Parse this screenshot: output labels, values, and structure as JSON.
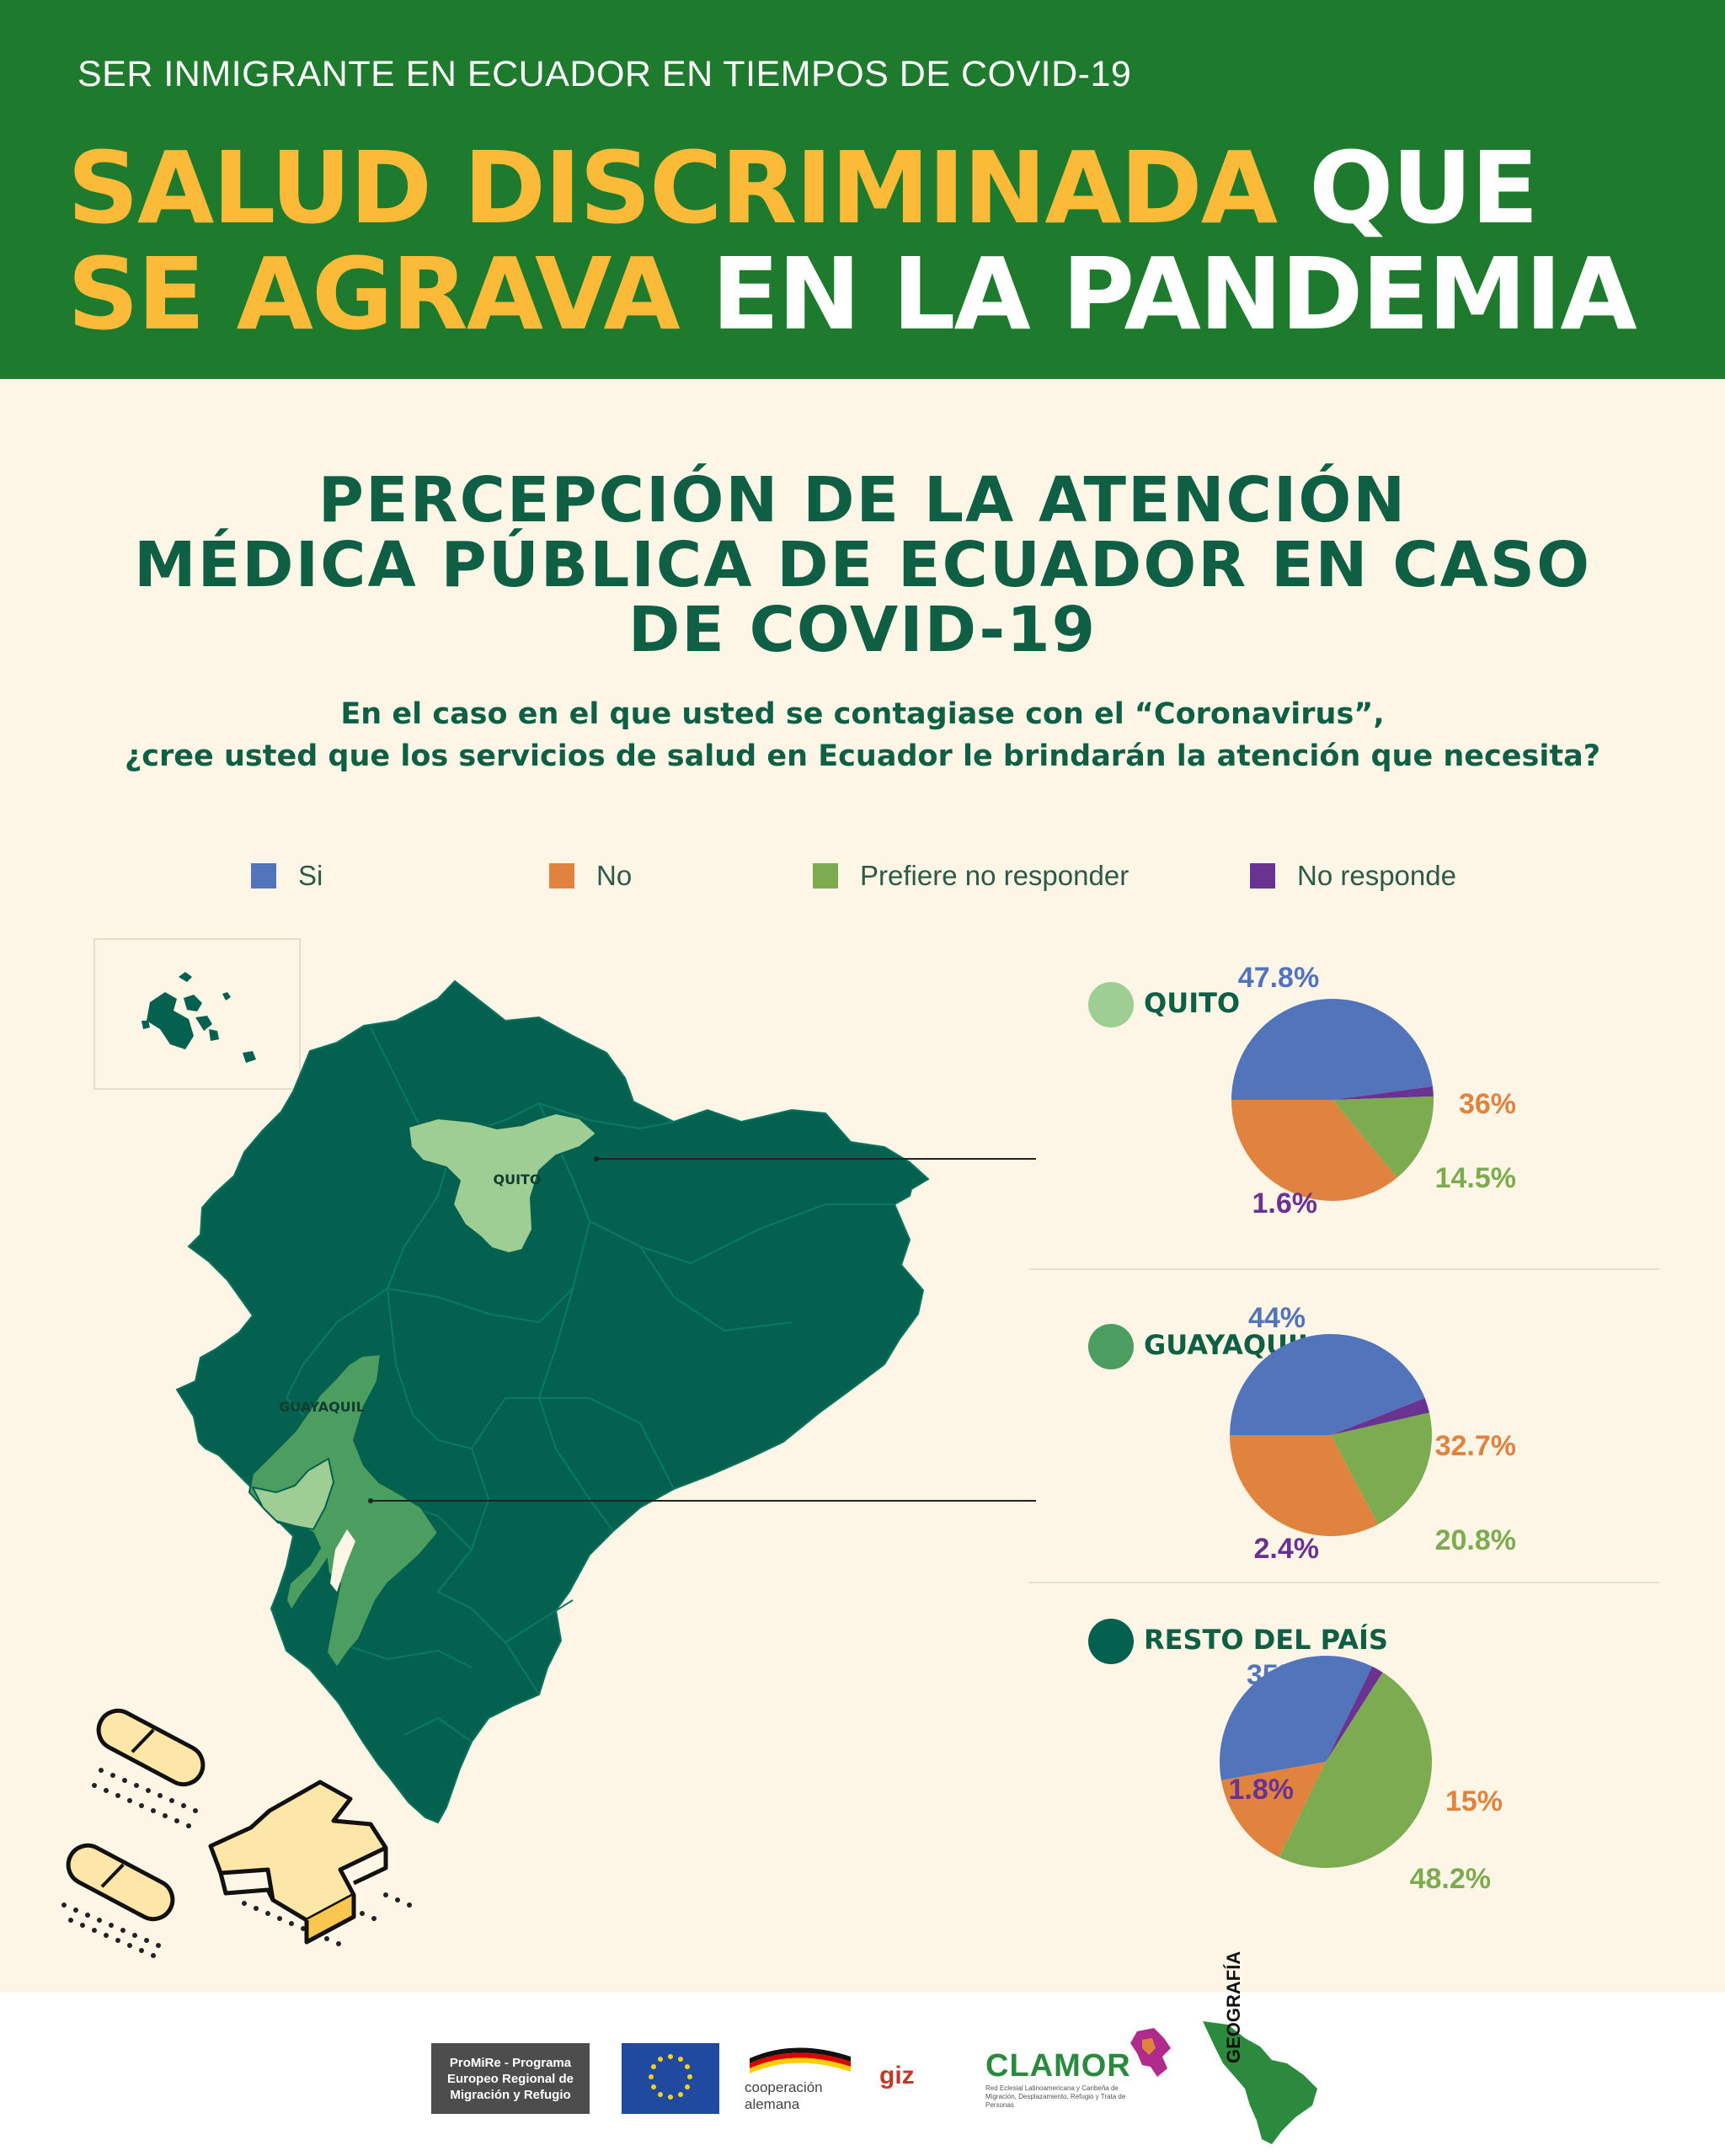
{
  "header": {
    "kicker": "SER INMIGRANTE EN ECUADOR EN TIEMPOS DE COVID-19",
    "headline_line1_highlight": "SALUD DISCRIMINADA",
    "headline_line1_rest": "QUE",
    "headline_line2_highlight": "SE AGRAVA",
    "headline_line2_rest": "EN LA PANDEMIA"
  },
  "section": {
    "title_line1": "PERCEPCIÓN DE LA ATENCIÓN",
    "title_line2": "MÉDICA PÚBLICA DE ECUADOR EN CASO",
    "title_line3": "DE COVID-19",
    "question_line1": "En el caso en el que usted se contagiase con el “Coronavirus”,",
    "question_line2": "¿cree usted que los servicios de salud en Ecuador le brindarán la atención que necesita?"
  },
  "legend": [
    {
      "label": "Si",
      "color": "#5274ba"
    },
    {
      "label": "No",
      "color": "#e0833f"
    },
    {
      "label": "Prefiere no responder",
      "color": "#7dab50"
    },
    {
      "label": "No responde",
      "color": "#6a3291"
    }
  ],
  "map": {
    "label_quito": "QUITO",
    "label_guayaquil": "GUAYAQUIL",
    "colors": {
      "country": "#046150",
      "quito": "#9fce95",
      "guayaquil": "#4c9d60"
    }
  },
  "regions": [
    {
      "name": "QUITO",
      "dot_color": "#9fce95"
    },
    {
      "name": "GUAYAQUIL",
      "dot_color": "#4c9d60"
    },
    {
      "name": "RESTO DEL PAÍS",
      "dot_color": "#046150"
    }
  ],
  "chart_data": [
    {
      "type": "pie",
      "title": "QUITO",
      "categories": [
        "Si",
        "No",
        "Prefiere no responder",
        "No responde"
      ],
      "values": [
        47.8,
        36,
        14.5,
        1.6
      ],
      "labels": [
        "47.8%",
        "36%",
        "14.5%",
        "1.6%"
      ]
    },
    {
      "type": "pie",
      "title": "GUAYAQUIL",
      "categories": [
        "Si",
        "No",
        "Prefiere no responder",
        "No responde"
      ],
      "values": [
        44,
        32.7,
        20.8,
        2.4
      ],
      "labels": [
        "44%",
        "32.7%",
        "20.8%",
        "2.4%"
      ]
    },
    {
      "type": "pie",
      "title": "RESTO DEL PAÍS",
      "categories": [
        "Si",
        "No",
        "Prefiere no responder",
        "No responde"
      ],
      "values": [
        35,
        15,
        48.2,
        1.8
      ],
      "labels": [
        "35%",
        "15%",
        "48.2%",
        "1.8%"
      ]
    }
  ],
  "footer": {
    "logos": [
      "ProMiRe - Programa Europeo Regional de Migración y Refugio",
      "cooperación alemana",
      "giz",
      "CLAMOR",
      "Red Eclesial Latinoamericana y Caribeña de Migración, Desplazamiento, Refugio y Trata de Personas",
      "GEOGRAFÍA"
    ]
  }
}
